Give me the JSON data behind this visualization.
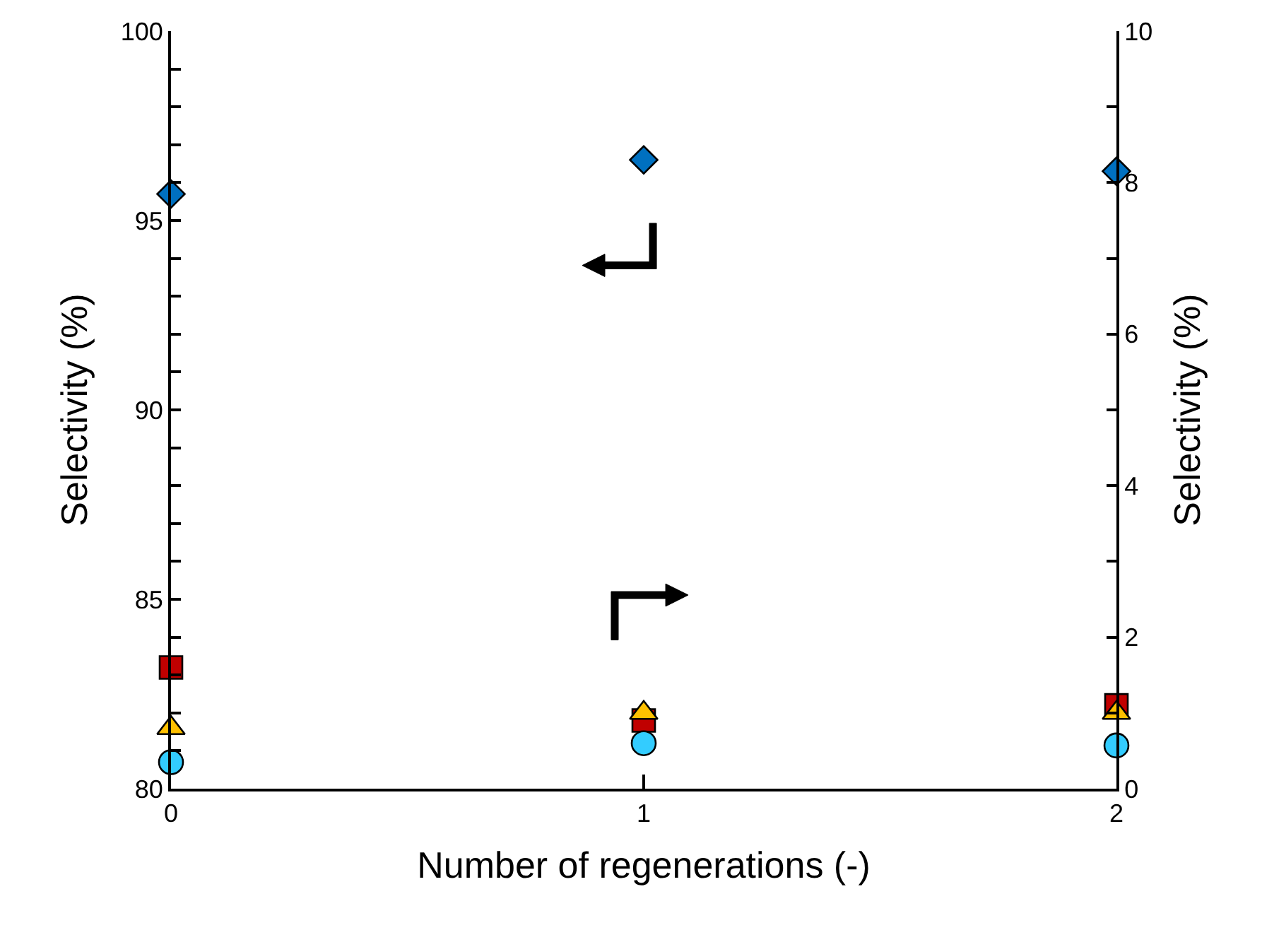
{
  "chart_data": {
    "type": "scatter",
    "xlabel": "Number of regenerations (-)",
    "ylabel": "Selectivity (%)",
    "y2label": "Selectivity (%)",
    "x": [
      0,
      1,
      2
    ],
    "series": [
      {
        "color": "#0070c0",
        "marker": "diamond",
        "values": [
          95.7,
          96.6,
          96.3
        ]
      },
      {
        "color": "#c00000",
        "marker": "square",
        "axis": "y2",
        "values": [
          1.6,
          0.9,
          1.1
        ]
      },
      {
        "color": "#ffc000",
        "marker": "triangle",
        "axis": "y2",
        "values": [
          0.8,
          1.0,
          1.0
        ]
      },
      {
        "color": "#33ccff",
        "marker": "circle",
        "axis": "y2",
        "values": [
          0.35,
          0.6,
          0.57
        ]
      }
    ],
    "xlim": [
      0,
      2
    ],
    "xticks": [
      0,
      1,
      2
    ],
    "ylim": [
      80,
      100
    ],
    "yticks": [
      80,
      {
        "value": 81,
        "label": null
      },
      {
        "value": 82,
        "label": null
      },
      {
        "value": 83,
        "label": null
      },
      {
        "value": 84,
        "label": null
      },
      85,
      {
        "value": 86,
        "label": null
      },
      {
        "value": 87,
        "label": null
      },
      {
        "value": 88,
        "label": null
      },
      {
        "value": 89,
        "label": null
      },
      90,
      {
        "value": 91,
        "label": null
      },
      {
        "value": 92,
        "label": null
      },
      {
        "value": 93,
        "label": null
      },
      {
        "value": 94,
        "label": null
      },
      95,
      {
        "value": 96,
        "label": null
      },
      {
        "value": 97,
        "label": null
      },
      {
        "value": 98,
        "label": null
      },
      {
        "value": 99,
        "label": null
      },
      100
    ],
    "y2lim": [
      0,
      10
    ],
    "y2ticks": [
      0,
      {
        "value": 1,
        "label": null
      },
      2,
      {
        "value": 3,
        "label": null
      },
      4,
      {
        "value": 5,
        "label": null
      },
      6,
      {
        "value": 7,
        "label": null
      },
      8,
      {
        "value": 9,
        "label": null
      },
      10
    ]
  }
}
